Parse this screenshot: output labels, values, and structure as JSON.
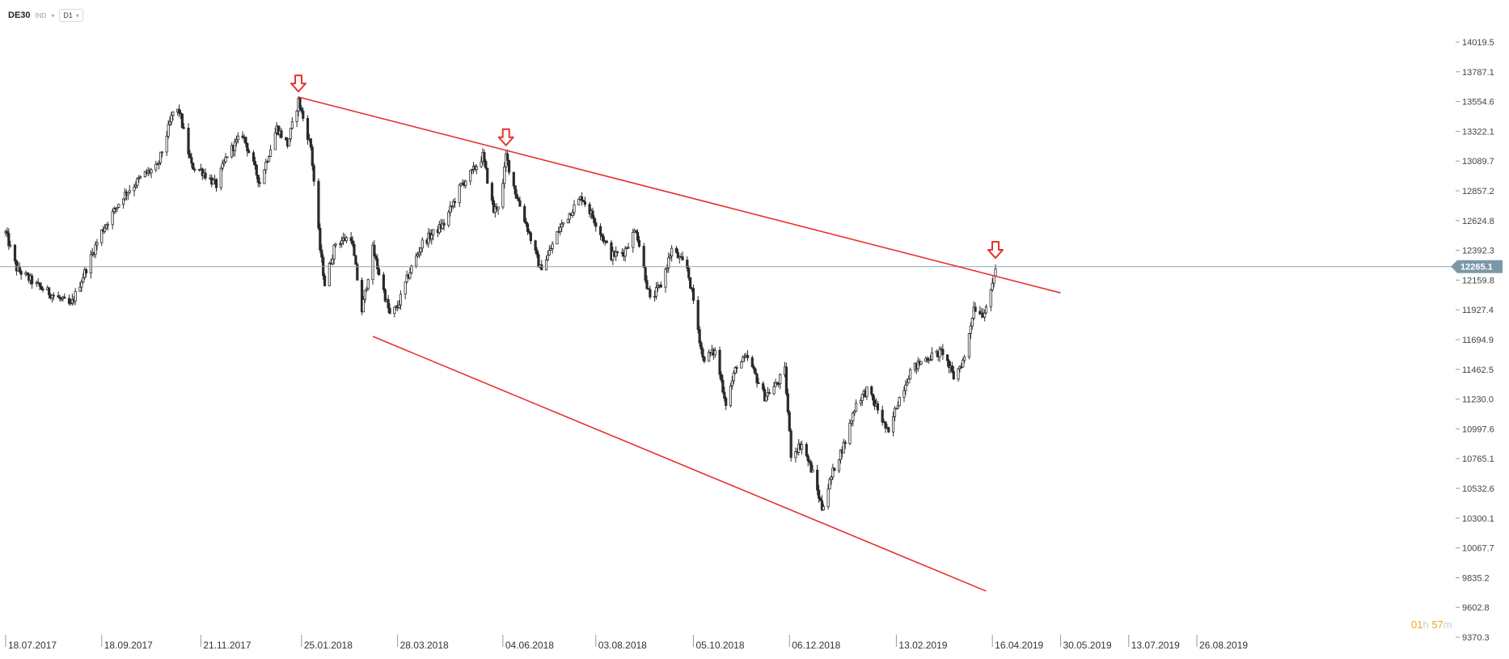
{
  "toolbar": {
    "symbol": "DE30",
    "type": "IND",
    "timeframe": "D1"
  },
  "countdown": {
    "h": "01",
    "m": "57",
    "h_unit": "h",
    "m_unit": "m"
  },
  "colors": {
    "candle": "#2a2a2a",
    "trendline": "#e8312f",
    "arrow": "#e8312f",
    "priceline": "#8aa6b5",
    "pricelabel": "#7c98a7"
  },
  "icons": {
    "arrow": "down-arrow-icon",
    "chevron": "chevron-down-icon"
  },
  "chart_data": {
    "type": "candlestick",
    "instrument": "DE30",
    "timeframe": "D1",
    "current_price": 12265.1,
    "ylim": [
      9370.3,
      14212
    ],
    "y_ticks": [
      14019.5,
      13787.1,
      13554.6,
      13322.1,
      13089.7,
      12857.2,
      12624.8,
      12392.3,
      12159.8,
      11927.4,
      11694.9,
      11462.5,
      11230.0,
      10997.6,
      10765.1,
      10532.6,
      10300.1,
      10067.7,
      9835.2,
      9602.8,
      9370.3
    ],
    "y_tick_labels": [
      "14019.5",
      "13787.1",
      "13554.6",
      "13322.1",
      "13089.7",
      "12857.2",
      "12624.8",
      "12392.3",
      "12159.8",
      "11927.4",
      "11694.9",
      "11462.5",
      "11230.0",
      "10997.6",
      "10765.1",
      "10532.6",
      "10300.1",
      "10067.7",
      "9835.2",
      "9602.8",
      "9370.3"
    ],
    "x_ticks": [
      "2017-07-18",
      "2017-09-18",
      "2017-11-21",
      "2018-01-25",
      "2018-03-28",
      "2018-06-04",
      "2018-08-03",
      "2018-10-05",
      "2018-12-06",
      "2019-02-13",
      "2019-04-16",
      "2019-05-30",
      "2019-07-13",
      "2019-08-26"
    ],
    "x_tick_labels": [
      "18.07.2017",
      "18.09.2017",
      "21.11.2017",
      "25.01.2018",
      "28.03.2018",
      "04.06.2018",
      "03.08.2018",
      "05.10.2018",
      "06.12.2018",
      "13.02.2019",
      "16.04.2019",
      "30.05.2019",
      "13.07.2019",
      "26.08.2019"
    ],
    "anchors": [
      {
        "date": "2017-07-18",
        "close": 12530
      },
      {
        "date": "2017-07-25",
        "close": 12250
      },
      {
        "date": "2017-08-07",
        "close": 12120
      },
      {
        "date": "2017-08-29",
        "close": 11960
      },
      {
        "date": "2017-09-07",
        "close": 12220
      },
      {
        "date": "2017-09-18",
        "close": 12540
      },
      {
        "date": "2017-10-02",
        "close": 12820
      },
      {
        "date": "2017-10-16",
        "close": 12990
      },
      {
        "date": "2017-10-24",
        "close": 13040
      },
      {
        "date": "2017-11-03",
        "close": 13470
      },
      {
        "date": "2017-11-07",
        "close": 13480
      },
      {
        "date": "2017-11-15",
        "close": 13050
      },
      {
        "date": "2017-11-21",
        "close": 13020
      },
      {
        "date": "2017-12-01",
        "close": 12900
      },
      {
        "date": "2017-12-08",
        "close": 13140
      },
      {
        "date": "2017-12-18",
        "close": 13300
      },
      {
        "date": "2017-12-29",
        "close": 12920
      },
      {
        "date": "2018-01-09",
        "close": 13350
      },
      {
        "date": "2018-01-16",
        "close": 13220
      },
      {
        "date": "2018-01-23",
        "close": 13560
      },
      {
        "date": "2018-01-31",
        "close": 13200
      },
      {
        "date": "2018-02-06",
        "close": 12400
      },
      {
        "date": "2018-02-09",
        "close": 12130
      },
      {
        "date": "2018-02-16",
        "close": 12450
      },
      {
        "date": "2018-02-26",
        "close": 12500
      },
      {
        "date": "2018-03-05",
        "close": 11920
      },
      {
        "date": "2018-03-12",
        "close": 12400
      },
      {
        "date": "2018-03-23",
        "close": 11890
      },
      {
        "date": "2018-03-28",
        "close": 11950
      },
      {
        "date": "2018-04-04",
        "close": 12200
      },
      {
        "date": "2018-04-13",
        "close": 12450
      },
      {
        "date": "2018-04-27",
        "close": 12600
      },
      {
        "date": "2018-05-08",
        "close": 12900
      },
      {
        "date": "2018-05-15",
        "close": 13000
      },
      {
        "date": "2018-05-22",
        "close": 13130
      },
      {
        "date": "2018-05-29",
        "close": 12700
      },
      {
        "date": "2018-06-01",
        "close": 12750
      },
      {
        "date": "2018-06-04",
        "close": 12900
      },
      {
        "date": "2018-06-06",
        "close": 13130
      },
      {
        "date": "2018-06-12",
        "close": 12850
      },
      {
        "date": "2018-06-19",
        "close": 12600
      },
      {
        "date": "2018-06-28",
        "close": 12250
      },
      {
        "date": "2018-07-03",
        "close": 12350
      },
      {
        "date": "2018-07-10",
        "close": 12550
      },
      {
        "date": "2018-07-18",
        "close": 12700
      },
      {
        "date": "2018-07-25",
        "close": 12810
      },
      {
        "date": "2018-08-03",
        "close": 12610
      },
      {
        "date": "2018-08-13",
        "close": 12350
      },
      {
        "date": "2018-08-21",
        "close": 12380
      },
      {
        "date": "2018-08-29",
        "close": 12560
      },
      {
        "date": "2018-09-07",
        "close": 12000
      },
      {
        "date": "2018-09-14",
        "close": 12120
      },
      {
        "date": "2018-09-21",
        "close": 12400
      },
      {
        "date": "2018-10-01",
        "close": 12250
      },
      {
        "date": "2018-10-05",
        "close": 12000
      },
      {
        "date": "2018-10-11",
        "close": 11550
      },
      {
        "date": "2018-10-19",
        "close": 11600
      },
      {
        "date": "2018-10-26",
        "close": 11200
      },
      {
        "date": "2018-11-02",
        "close": 11500
      },
      {
        "date": "2018-11-09",
        "close": 11550
      },
      {
        "date": "2018-11-20",
        "close": 11250
      },
      {
        "date": "2018-11-28",
        "close": 11350
      },
      {
        "date": "2018-12-03",
        "close": 11450
      },
      {
        "date": "2018-12-07",
        "close": 10800
      },
      {
        "date": "2018-12-14",
        "close": 10880
      },
      {
        "date": "2018-12-21",
        "close": 10650
      },
      {
        "date": "2018-12-27",
        "close": 10380
      },
      {
        "date": "2019-01-04",
        "close": 10700
      },
      {
        "date": "2019-01-11",
        "close": 10900
      },
      {
        "date": "2019-01-18",
        "close": 11200
      },
      {
        "date": "2019-01-25",
        "close": 11300
      },
      {
        "date": "2019-02-01",
        "close": 11150
      },
      {
        "date": "2019-02-08",
        "close": 10950
      },
      {
        "date": "2019-02-13",
        "close": 11180
      },
      {
        "date": "2019-02-22",
        "close": 11450
      },
      {
        "date": "2019-03-04",
        "close": 11550
      },
      {
        "date": "2019-03-15",
        "close": 11600
      },
      {
        "date": "2019-03-22",
        "close": 11400
      },
      {
        "date": "2019-03-29",
        "close": 11550
      },
      {
        "date": "2019-04-04",
        "close": 11950
      },
      {
        "date": "2019-04-10",
        "close": 11900
      },
      {
        "date": "2019-04-15",
        "close": 12050
      },
      {
        "date": "2019-04-18",
        "close": 12265
      }
    ],
    "trendlines": [
      {
        "name": "resistance",
        "from": {
          "date": "2018-01-23",
          "price": 13590
        },
        "to": {
          "date": "2019-05-30",
          "price": 12060
        }
      },
      {
        "name": "support",
        "from": {
          "date": "2018-03-12",
          "price": 11720
        },
        "to": {
          "date": "2019-04-12",
          "price": 9730
        }
      }
    ],
    "markers": [
      {
        "type": "arrow-down",
        "date": "2018-01-23",
        "price": 13620
      },
      {
        "type": "arrow-down",
        "date": "2018-06-06",
        "price": 13200
      },
      {
        "type": "arrow-down",
        "date": "2019-04-18",
        "price": 12320
      }
    ]
  }
}
